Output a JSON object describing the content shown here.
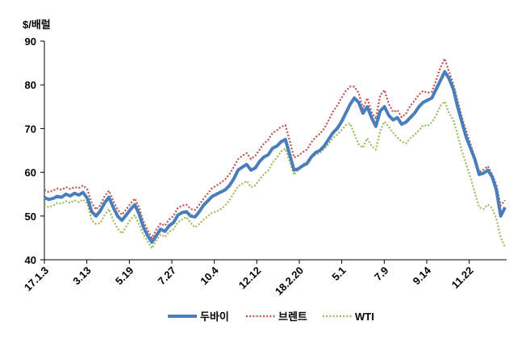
{
  "chart_data": {
    "type": "line",
    "unit_label": "$/배럴",
    "ylim": [
      40,
      90
    ],
    "yticks": [
      40,
      50,
      60,
      70,
      80,
      90
    ],
    "x_tick_labels": [
      "17.1.3",
      "3.13",
      "5.19",
      "7.27",
      "10.4",
      "12.12",
      "18.2.20",
      "5.1",
      "7.9",
      "9.14",
      "11.22"
    ],
    "grid": false,
    "legend_position": "bottom",
    "series": [
      {
        "name": "두바이",
        "color": "#4a7ebb",
        "style": "solid",
        "values": [
          54.2,
          53.8,
          54.0,
          54.5,
          54.3,
          55.0,
          54.6,
          55.2,
          54.8,
          55.4,
          54.0,
          51.0,
          50.0,
          51.2,
          53.0,
          54.3,
          52.0,
          50.0,
          49.0,
          50.2,
          51.5,
          52.6,
          50.5,
          47.5,
          45.5,
          44.0,
          45.5,
          47.0,
          46.5,
          47.8,
          48.5,
          50.2,
          50.8,
          51.0,
          50.0,
          49.8,
          51.0,
          52.5,
          53.5,
          54.5,
          55.0,
          55.5,
          56.0,
          57.0,
          58.5,
          60.5,
          61.2,
          61.8,
          60.5,
          61.0,
          62.5,
          63.5,
          64.0,
          65.5,
          66.0,
          67.0,
          67.5,
          64.0,
          60.5,
          60.8,
          61.5,
          62.0,
          63.5,
          64.5,
          65.0,
          66.0,
          67.5,
          69.0,
          70.0,
          71.5,
          73.5,
          75.5,
          77.0,
          76.0,
          73.5,
          75.0,
          72.5,
          70.5,
          74.0,
          75.0,
          73.0,
          72.0,
          72.5,
          71.0,
          71.5,
          72.5,
          73.5,
          75.0,
          76.0,
          76.5,
          77.0,
          79.0,
          81.0,
          83.0,
          81.5,
          79.0,
          75.0,
          71.5,
          68.0,
          65.5,
          63.0,
          59.5,
          59.8,
          60.5,
          59.0,
          56.0,
          50.0,
          52.0
        ]
      },
      {
        "name": "브렌트",
        "color": "#c0504d",
        "style": "dotted",
        "values": [
          56.0,
          55.5,
          55.8,
          56.3,
          56.0,
          56.6,
          56.2,
          56.6,
          56.4,
          57.0,
          56.0,
          53.0,
          51.5,
          52.5,
          54.5,
          55.8,
          53.5,
          51.5,
          50.3,
          51.5,
          52.8,
          54.0,
          52.0,
          48.8,
          46.8,
          45.0,
          46.8,
          48.3,
          47.8,
          49.2,
          50.0,
          51.8,
          52.4,
          52.6,
          51.6,
          51.4,
          52.6,
          54.0,
          55.2,
          56.4,
          57.0,
          57.6,
          58.4,
          59.6,
          61.2,
          63.0,
          63.8,
          64.4,
          63.0,
          63.8,
          65.2,
          66.6,
          67.4,
          69.0,
          69.6,
          70.4,
          70.8,
          67.2,
          63.4,
          63.8,
          64.6,
          65.2,
          66.8,
          68.0,
          68.8,
          70.0,
          71.8,
          73.8,
          75.2,
          77.0,
          78.6,
          79.6,
          79.6,
          78.2,
          74.6,
          77.0,
          73.8,
          72.2,
          77.6,
          78.8,
          75.6,
          73.8,
          74.2,
          72.6,
          73.4,
          75.2,
          76.4,
          77.8,
          78.6,
          78.2,
          78.4,
          81.0,
          84.0,
          86.0,
          83.0,
          80.2,
          76.4,
          72.6,
          69.4,
          66.4,
          63.4,
          60.0,
          60.6,
          61.4,
          59.6,
          57.2,
          52.4,
          53.6
        ]
      },
      {
        "name": "WTI",
        "color": "#9bbb59",
        "style": "dotted",
        "values": [
          52.6,
          52.0,
          52.4,
          53.0,
          52.8,
          53.4,
          53.0,
          53.6,
          53.2,
          53.8,
          52.8,
          49.0,
          48.2,
          48.4,
          50.2,
          51.6,
          49.0,
          47.2,
          46.0,
          47.6,
          49.2,
          50.2,
          48.0,
          45.8,
          44.2,
          42.6,
          44.4,
          45.8,
          45.2,
          46.4,
          47.0,
          48.6,
          49.2,
          49.8,
          48.4,
          47.4,
          48.2,
          49.2,
          50.0,
          50.8,
          51.0,
          51.6,
          52.4,
          53.6,
          55.2,
          56.8,
          57.4,
          58.0,
          56.6,
          57.0,
          58.4,
          59.6,
          60.4,
          62.2,
          63.4,
          64.8,
          65.4,
          62.4,
          59.4,
          60.6,
          61.8,
          62.4,
          63.4,
          64.0,
          64.4,
          65.4,
          66.4,
          67.8,
          68.6,
          69.6,
          70.8,
          71.2,
          68.8,
          66.4,
          65.6,
          67.8,
          66.0,
          65.2,
          69.4,
          71.6,
          70.4,
          69.0,
          68.0,
          67.0,
          66.6,
          67.8,
          68.6,
          69.6,
          70.8,
          70.6,
          71.4,
          73.0,
          75.2,
          76.2,
          73.6,
          72.0,
          68.6,
          64.8,
          61.8,
          58.8,
          55.4,
          52.0,
          51.6,
          52.6,
          51.8,
          49.4,
          45.0,
          43.0
        ]
      }
    ]
  }
}
